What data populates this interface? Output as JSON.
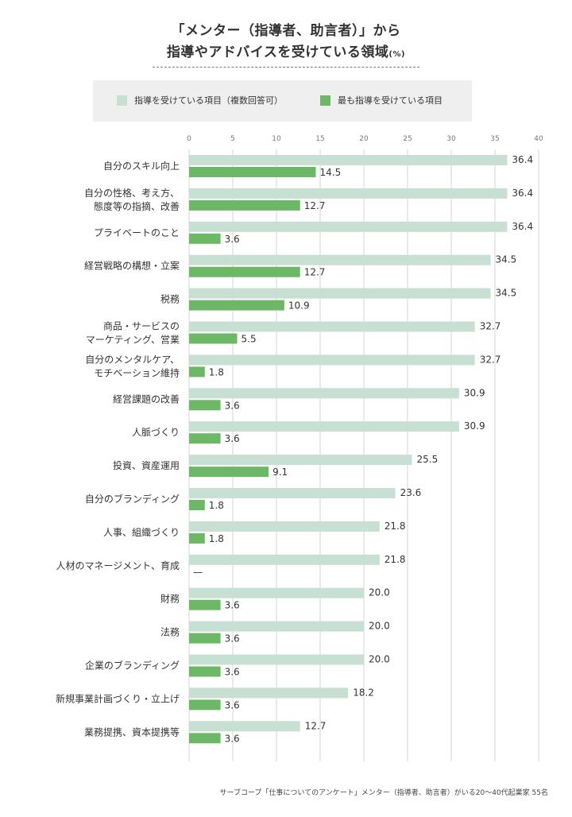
{
  "title": {
    "line1": "「メンター（指導者、助言者）」から",
    "line2": "指導やアドバイスを受けている領域",
    "unit": "(%)"
  },
  "legend": {
    "series1": "指導を受けている項目（複数回答可）",
    "series2": "最も指導を受けている項目"
  },
  "colors": {
    "series1": "#c8e0d3",
    "series2": "#6cb866",
    "grid": "#d6d6d6"
  },
  "footer": "サーブコープ「仕事についてのアンケート」メンター（指導者、助言者）がいる20〜40代起業家 55名",
  "chart_data": {
    "type": "bar",
    "orientation": "horizontal",
    "xlim": [
      0,
      40
    ],
    "ticks": [
      0,
      5,
      10,
      15,
      20,
      25,
      30,
      35,
      40
    ],
    "grid": true,
    "legend_position": "top",
    "categories": [
      [
        "自分のスキル向上"
      ],
      [
        "自分の性格、考え方、",
        "態度等の指摘、改善"
      ],
      [
        "プライベートのこと"
      ],
      [
        "経営戦略の構想・立案"
      ],
      [
        "税務"
      ],
      [
        "商品・サービスの",
        "マーケティング、営業"
      ],
      [
        "自分のメンタルケア、",
        "モチベーション維持"
      ],
      [
        "経営課題の改善"
      ],
      [
        "人脈づくり"
      ],
      [
        "投資、資産運用"
      ],
      [
        "自分のブランディング"
      ],
      [
        "人事、組織づくり"
      ],
      [
        "人材のマネージメント、育成"
      ],
      [
        "財務"
      ],
      [
        "法務"
      ],
      [
        "企業のブランディング"
      ],
      [
        "新規事業計画づくり・立上げ"
      ],
      [
        "業務提携、資本提携等"
      ]
    ],
    "series": [
      {
        "name": "指導を受けている項目（複数回答可）",
        "values": [
          36.4,
          36.4,
          36.4,
          34.5,
          34.5,
          32.7,
          32.7,
          30.9,
          30.9,
          25.5,
          23.6,
          21.8,
          21.8,
          20.0,
          20.0,
          20.0,
          18.2,
          12.7
        ]
      },
      {
        "name": "最も指導を受けている項目",
        "values": [
          14.5,
          12.7,
          3.6,
          12.7,
          10.9,
          5.5,
          1.8,
          3.6,
          3.6,
          9.1,
          1.8,
          1.8,
          null,
          3.6,
          3.6,
          3.6,
          3.6,
          3.6
        ]
      }
    ],
    "missing_label": "—"
  }
}
